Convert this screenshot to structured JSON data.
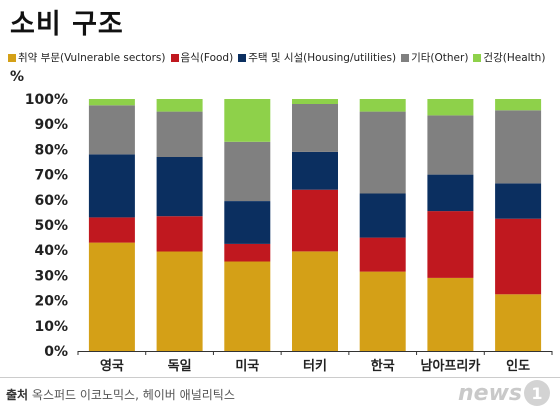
{
  "title": "소비 구조",
  "unit": "%",
  "source_label": "출처",
  "source_text": "옥스퍼드 이코노믹스, 헤이버 애널리틱스",
  "logo": {
    "text": "news",
    "mark": "1"
  },
  "chart_data": {
    "type": "bar",
    "stacked": true,
    "categories": [
      "영국",
      "독일",
      "미국",
      "터키",
      "한국",
      "남아프리카",
      "인도"
    ],
    "series": [
      {
        "name": "취약 부문(Vulnerable sectors)",
        "color": "#d4a017",
        "values": [
          43,
          39.5,
          35.5,
          39.5,
          31.5,
          29,
          22.5
        ]
      },
      {
        "name": "음식(Food)",
        "color": "#c0181f",
        "values": [
          10,
          14,
          7,
          24.5,
          13.5,
          26.5,
          30
        ]
      },
      {
        "name": "주택 및 시설(Housing/utilities)",
        "color": "#0b2f60",
        "values": [
          25,
          23.5,
          17,
          15,
          17.5,
          14.5,
          14
        ]
      },
      {
        "name": "기타(Other)",
        "color": "#808080",
        "values": [
          19.5,
          18,
          23.5,
          19,
          32.5,
          23.5,
          29
        ]
      },
      {
        "name": "건강(Health)",
        "color": "#8ed14a",
        "values": [
          2.5,
          5,
          17,
          2,
          5,
          6.5,
          4.5
        ]
      }
    ],
    "ylim": [
      0,
      100
    ],
    "yticks": [
      "0%",
      "10%",
      "20%",
      "30%",
      "40%",
      "50%",
      "60%",
      "70%",
      "80%",
      "90%",
      "100%"
    ],
    "grid": false,
    "legend_position": "top"
  }
}
